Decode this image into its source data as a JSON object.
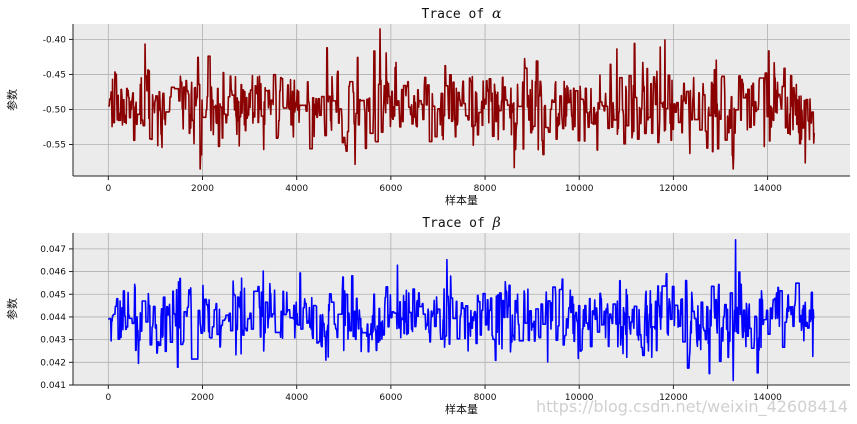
{
  "chart_data": [
    {
      "type": "line",
      "title_prefix": "Trace of",
      "title_symbol": "α",
      "xlabel": "样本量",
      "ylabel": "参数",
      "xlim": [
        -750,
        15750
      ],
      "ylim": [
        -0.595,
        -0.378
      ],
      "xticks": [
        0,
        2000,
        4000,
        6000,
        8000,
        10000,
        12000,
        14000
      ],
      "yticks": [
        -0.4,
        -0.45,
        -0.5,
        -0.55
      ],
      "ytick_labels": [
        "-0.40",
        "-0.45",
        "-0.50",
        "-0.55"
      ],
      "grid": true,
      "series": [
        {
          "color": "#8b0000",
          "n_samples": 15000,
          "mean": -0.495,
          "typical_range": [
            -0.545,
            -0.45
          ],
          "min": -0.585,
          "max": -0.385
        }
      ]
    },
    {
      "type": "line",
      "title_prefix": "Trace of",
      "title_symbol": "β",
      "xlabel": "样本量",
      "ylabel": "参数",
      "xlim": [
        -750,
        15750
      ],
      "ylim": [
        0.041,
        0.0477
      ],
      "xticks": [
        0,
        2000,
        4000,
        6000,
        8000,
        10000,
        12000,
        14000
      ],
      "yticks": [
        0.041,
        0.042,
        0.043,
        0.044,
        0.045,
        0.046,
        0.047
      ],
      "ytick_labels": [
        "0.041",
        "0.042",
        "0.043",
        "0.044",
        "0.045",
        "0.046",
        "0.047"
      ],
      "grid": true,
      "series": [
        {
          "color": "#0000ff",
          "n_samples": 15000,
          "mean": 0.0439,
          "typical_range": [
            0.0425,
            0.0452
          ],
          "min": 0.0412,
          "max": 0.0474
        }
      ]
    }
  ],
  "watermark": "https://blog.csdn.net/weixin_42608414"
}
